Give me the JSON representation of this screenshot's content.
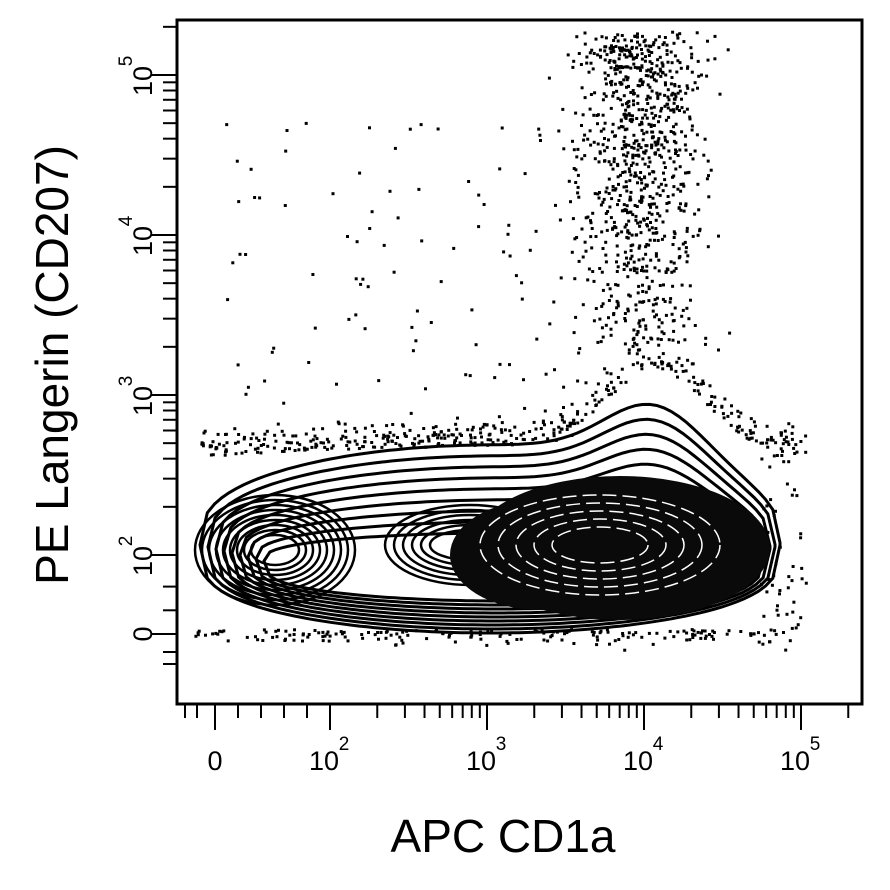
{
  "chart_data": {
    "type": "scatter",
    "subtype": "flow cytometry density contour plot with outlier dots",
    "xlabel": "APC  CD1a",
    "ylabel": "PE  Langerin (CD207)",
    "x_scale": "biexponential (log above ~10^2, linear near 0)",
    "y_scale": "biexponential (log above ~10^2, linear near 0)",
    "x_ticks": [
      {
        "value": 0,
        "base": "0",
        "exp": ""
      },
      {
        "value": 100,
        "base": "10",
        "exp": "2"
      },
      {
        "value": 1000,
        "base": "10",
        "exp": "3"
      },
      {
        "value": 10000,
        "base": "10",
        "exp": "4"
      },
      {
        "value": 100000,
        "base": "10",
        "exp": "5"
      }
    ],
    "y_ticks": [
      {
        "value": 0,
        "base": "0",
        "exp": ""
      },
      {
        "value": 100,
        "base": "10",
        "exp": "2"
      },
      {
        "value": 1000,
        "base": "10",
        "exp": "3"
      },
      {
        "value": 10000,
        "base": "10",
        "exp": "4"
      },
      {
        "value": 100000,
        "base": "10",
        "exp": "5"
      }
    ],
    "xlim": [
      -50,
      200000
    ],
    "ylim": [
      -50,
      250000
    ],
    "grid": false,
    "legend": "none",
    "populations": [
      {
        "description": "main dense population",
        "x_center": 5000,
        "y_center": 100,
        "x_spread": "10^3 to 5x10^4",
        "y_spread": "30 to 300"
      },
      {
        "description": "low CD1a population",
        "x_center": 10,
        "y_center": 100
      },
      {
        "description": "Langerin-high scattered cells",
        "x_range": [
          1000,
          100000
        ],
        "y_range": [
          1000,
          200000
        ]
      }
    ],
    "colors": {
      "marks": "#000000",
      "background": "#ffffff"
    }
  }
}
